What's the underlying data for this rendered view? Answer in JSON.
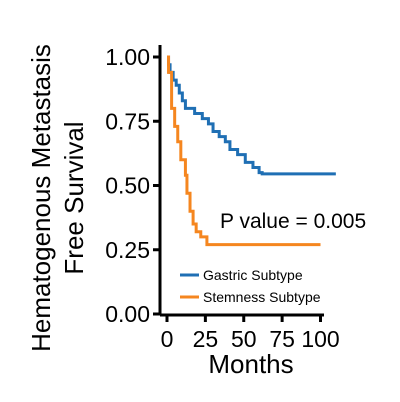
{
  "chart_data": {
    "type": "line",
    "step": true,
    "ylabel_line1": "Hematogenous Metastasis",
    "ylabel_line2": "Free Survival",
    "xlabel": "Months",
    "xlim": [
      0,
      110
    ],
    "ylim": [
      0,
      1
    ],
    "xticks": [
      0,
      25,
      50,
      75,
      100
    ],
    "xtick_labels": [
      "0",
      "25",
      "50",
      "75",
      "100"
    ],
    "yticks": [
      0,
      0.25,
      0.5,
      0.75,
      1.0
    ],
    "ytick_labels": [
      "0.00",
      "0.25",
      "0.50",
      "0.75",
      "1.00"
    ],
    "grid": false,
    "legend_position": "bottom-right",
    "annotation": "P value = 0.005",
    "series": [
      {
        "name": "Gastric Subtype",
        "color": "#1f6fb4",
        "x": [
          0,
          1,
          2,
          4,
          6,
          8,
          10,
          12,
          18,
          23,
          27,
          30,
          34,
          38,
          41,
          46,
          51,
          56,
          60,
          62,
          110
        ],
        "y": [
          1.0,
          0.97,
          0.94,
          0.91,
          0.89,
          0.86,
          0.83,
          0.8,
          0.78,
          0.76,
          0.74,
          0.71,
          0.69,
          0.67,
          0.64,
          0.62,
          0.59,
          0.57,
          0.55,
          0.545,
          0.545
        ]
      },
      {
        "name": "Stemness Subtype",
        "color": "#f5861f",
        "x": [
          0,
          1,
          3,
          5,
          7,
          9,
          12,
          13,
          15,
          17,
          19,
          22,
          26,
          100
        ],
        "y": [
          1.0,
          0.94,
          0.8,
          0.73,
          0.67,
          0.6,
          0.54,
          0.47,
          0.4,
          0.35,
          0.32,
          0.3,
          0.27,
          0.27
        ]
      }
    ]
  }
}
